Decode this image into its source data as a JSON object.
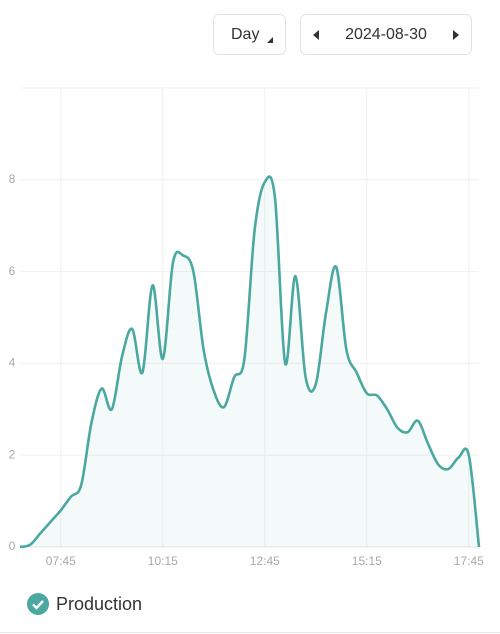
{
  "controls": {
    "period": "Day",
    "date": "2024-08-30"
  },
  "chart_data": {
    "type": "area",
    "x": [
      "06:45",
      "07:00",
      "07:15",
      "07:30",
      "07:45",
      "08:00",
      "08:15",
      "08:30",
      "08:45",
      "09:00",
      "09:15",
      "09:30",
      "09:45",
      "10:00",
      "10:15",
      "10:30",
      "10:45",
      "11:00",
      "11:15",
      "11:30",
      "11:45",
      "12:00",
      "12:15",
      "12:30",
      "12:45",
      "13:00",
      "13:15",
      "13:30",
      "13:45",
      "14:00",
      "14:15",
      "14:30",
      "14:45",
      "15:00",
      "15:15",
      "15:30",
      "15:45",
      "16:00",
      "16:15",
      "16:30",
      "16:45",
      "17:00",
      "17:15",
      "17:30",
      "17:45",
      "18:00"
    ],
    "series": [
      {
        "name": "Production",
        "color": "#4aa8a0",
        "values": [
          0,
          0.05,
          0.3,
          0.55,
          0.8,
          1.1,
          1.35,
          2.7,
          3.45,
          3.0,
          4.15,
          4.75,
          3.8,
          5.7,
          4.1,
          6.2,
          6.35,
          6.0,
          4.3,
          3.4,
          3.05,
          3.7,
          4.1,
          6.9,
          7.95,
          7.6,
          4.0,
          5.9,
          3.7,
          3.55,
          5.1,
          6.1,
          4.3,
          3.8,
          3.35,
          3.3,
          3.0,
          2.6,
          2.5,
          2.75,
          2.25,
          1.8,
          1.7,
          1.95,
          2.0,
          0
        ]
      }
    ],
    "xlim": [
      "06:45",
      "18:00"
    ],
    "xticks": [
      "07:45",
      "10:15",
      "12:45",
      "15:15",
      "17:45"
    ],
    "ylim": [
      0,
      10
    ],
    "yticks": [
      0,
      2,
      4,
      6,
      8
    ],
    "grid": true
  }
}
